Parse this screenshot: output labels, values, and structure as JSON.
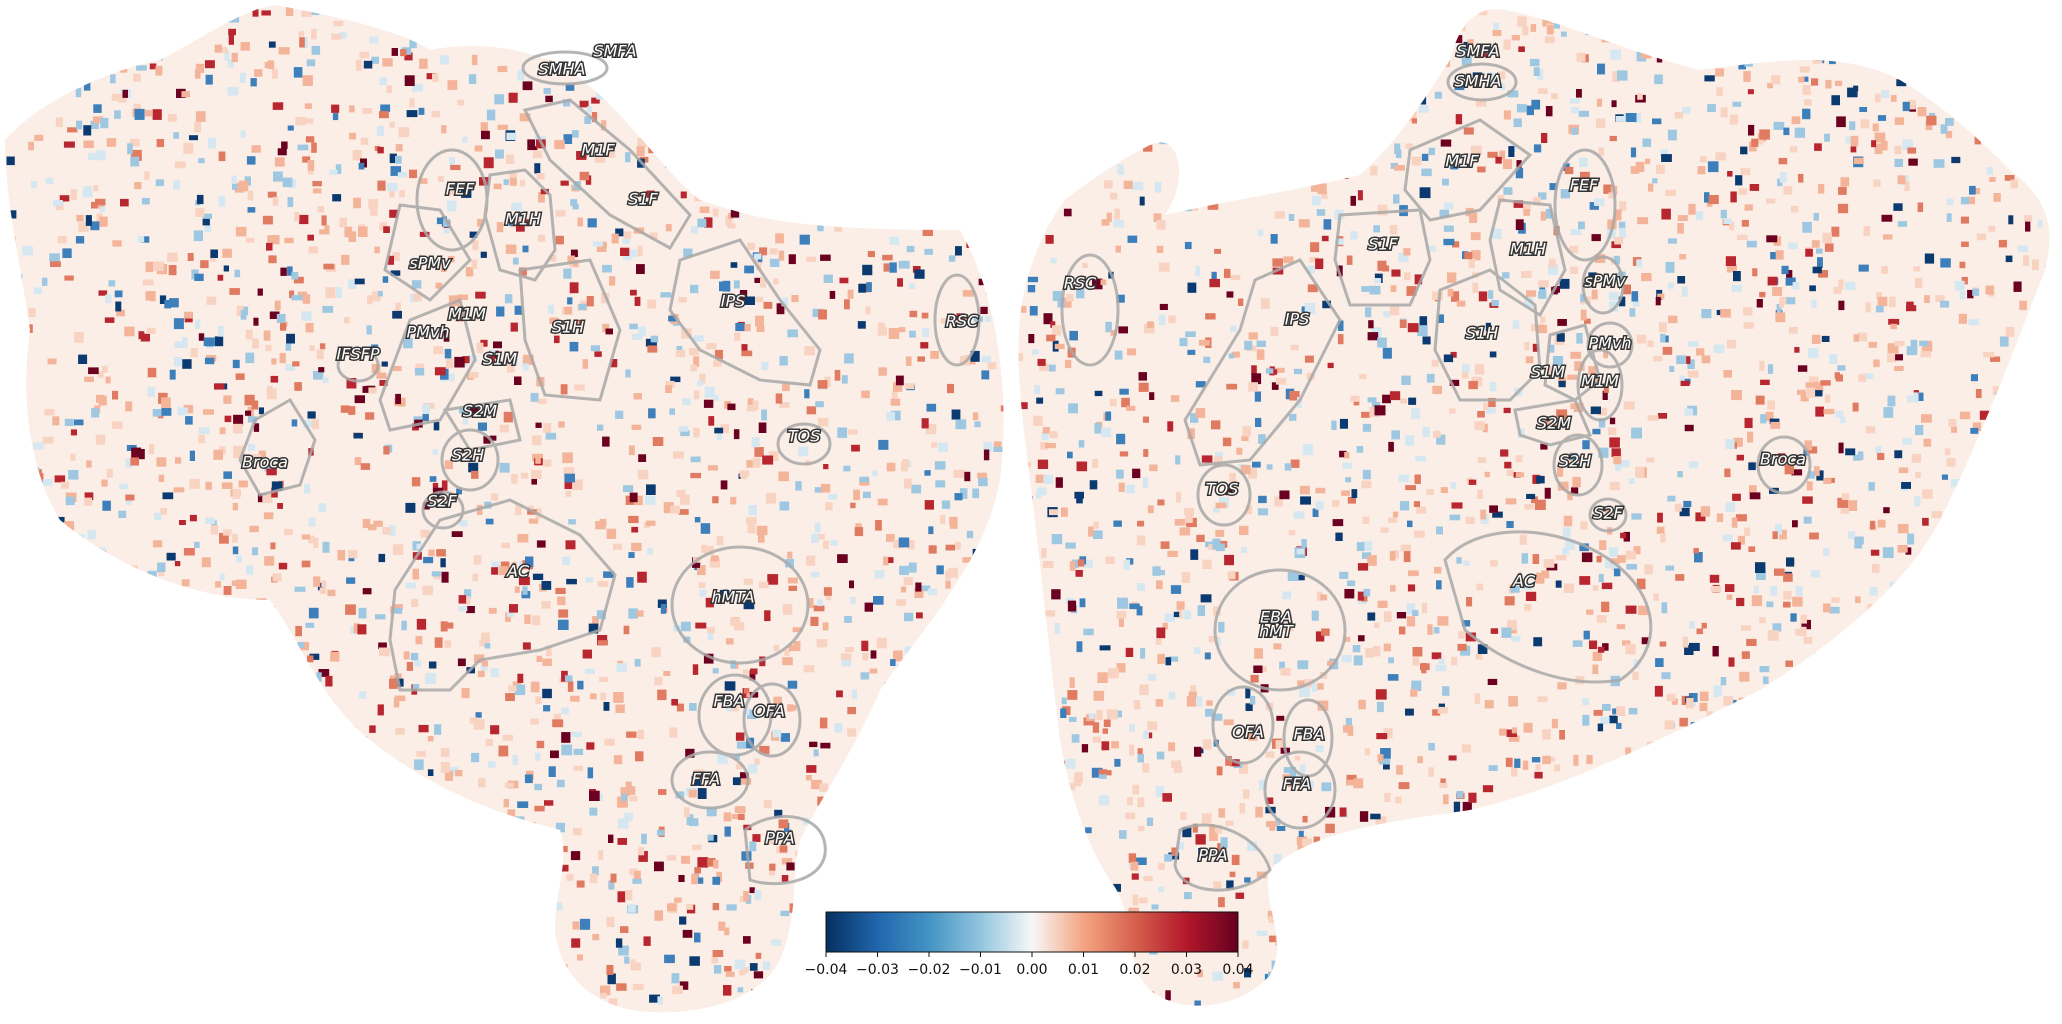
{
  "figure": {
    "hemispheres": [
      {
        "side": "left",
        "labels": [
          "SMFA",
          "SMHA",
          "M1F",
          "S1F",
          "FEF",
          "M1H",
          "sPMv",
          "M1M",
          "PMvh",
          "S1M",
          "S1H",
          "IFSFP",
          "S2M",
          "S2H",
          "S2F",
          "Broca",
          "IPS",
          "RSC",
          "TOS",
          "AC",
          "hMTA",
          "FBA",
          "OFA",
          "FFA",
          "PPA"
        ]
      },
      {
        "side": "right",
        "labels": [
          "SMFA",
          "SMHA",
          "M1F",
          "FEF",
          "S1F",
          "M1H",
          "sPMv",
          "RSC",
          "IPS",
          "S1H",
          "PMvh",
          "S1M",
          "M1M",
          "S2M",
          "S2H",
          "S2F",
          "Broca",
          "TOS",
          "AC",
          "EBA",
          "hMT",
          "OFA",
          "FBA",
          "FFA",
          "PPA"
        ]
      }
    ],
    "colorbar": {
      "colormap": "RdBu_r",
      "min": -0.04,
      "max": 0.04,
      "ticks": [
        "−0.04",
        "−0.03",
        "−0.02",
        "−0.01",
        "0.00",
        "0.01",
        "0.02",
        "0.03",
        "0.04"
      ],
      "colors": [
        "#053061",
        "#2166ac",
        "#4393c3",
        "#92c5de",
        "#f7f7f7",
        "#f4a582",
        "#d6604d",
        "#b2182b",
        "#67001f"
      ]
    }
  }
}
